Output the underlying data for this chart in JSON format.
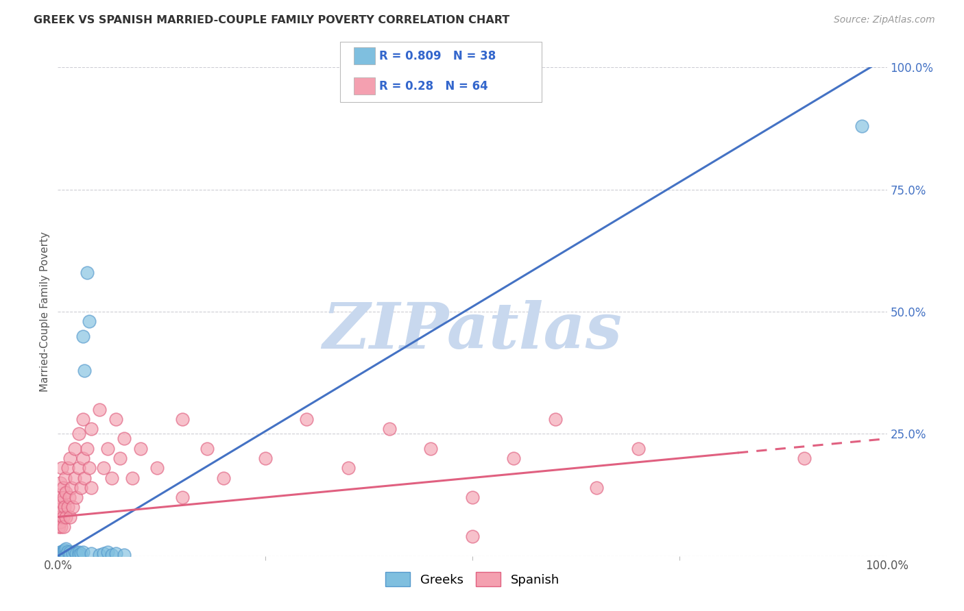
{
  "title": "GREEK VS SPANISH MARRIED-COUPLE FAMILY POVERTY CORRELATION CHART",
  "source": "Source: ZipAtlas.com",
  "ylabel": "Married-Couple Family Poverty",
  "xlim": [
    0,
    1
  ],
  "ylim": [
    0,
    1
  ],
  "yticks": [
    0.0,
    0.25,
    0.5,
    0.75,
    1.0
  ],
  "yticklabels": [
    "",
    "25.0%",
    "50.0%",
    "75.0%",
    "100.0%"
  ],
  "xtick_positions": [
    0.0,
    1.0
  ],
  "xticklabels": [
    "0.0%",
    "100.0%"
  ],
  "grid_yticks": [
    0.0,
    0.25,
    0.5,
    0.75,
    1.0
  ],
  "greek_color": "#7fbfdf",
  "greek_edge_color": "#5599cc",
  "spanish_color": "#f4a0b0",
  "spanish_edge_color": "#e06080",
  "greek_line_color": "#4472c4",
  "spanish_line_color": "#e06080",
  "legend_text_color": "#3366cc",
  "background_color": "#ffffff",
  "grid_color": "#c8c8d0",
  "watermark_color": "#c8d8ee",
  "watermark_text": "ZIPatlas",
  "greek_R": 0.809,
  "greek_N": 38,
  "spanish_R": 0.28,
  "spanish_N": 64,
  "greek_line_x0": 0.0,
  "greek_line_y0": 0.0,
  "greek_line_x1": 1.0,
  "greek_line_y1": 1.02,
  "spanish_line_x0": 0.0,
  "spanish_line_y0": 0.08,
  "spanish_line_x1": 1.0,
  "spanish_line_y1": 0.24,
  "greek_scatter": [
    [
      0.001,
      0.002
    ],
    [
      0.001,
      0.003
    ],
    [
      0.002,
      0.005
    ],
    [
      0.002,
      0.002
    ],
    [
      0.003,
      0.004
    ],
    [
      0.003,
      0.008
    ],
    [
      0.004,
      0.006
    ],
    [
      0.004,
      0.003
    ],
    [
      0.005,
      0.01
    ],
    [
      0.005,
      0.005
    ],
    [
      0.006,
      0.008
    ],
    [
      0.007,
      0.006
    ],
    [
      0.008,
      0.012
    ],
    [
      0.009,
      0.005
    ],
    [
      0.01,
      0.015
    ],
    [
      0.01,
      0.003
    ],
    [
      0.012,
      0.01
    ],
    [
      0.015,
      0.008
    ],
    [
      0.015,
      0.003
    ],
    [
      0.018,
      0.005
    ],
    [
      0.02,
      0.01
    ],
    [
      0.022,
      0.005
    ],
    [
      0.025,
      0.008
    ],
    [
      0.025,
      0.003
    ],
    [
      0.028,
      0.005
    ],
    [
      0.03,
      0.008
    ],
    [
      0.03,
      0.45
    ],
    [
      0.032,
      0.38
    ],
    [
      0.035,
      0.58
    ],
    [
      0.038,
      0.48
    ],
    [
      0.04,
      0.005
    ],
    [
      0.05,
      0.003
    ],
    [
      0.055,
      0.005
    ],
    [
      0.06,
      0.008
    ],
    [
      0.065,
      0.003
    ],
    [
      0.07,
      0.005
    ],
    [
      0.08,
      0.003
    ],
    [
      0.97,
      0.88
    ]
  ],
  "spanish_scatter": [
    [
      0.001,
      0.06
    ],
    [
      0.001,
      0.1
    ],
    [
      0.002,
      0.08
    ],
    [
      0.002,
      0.12
    ],
    [
      0.003,
      0.07
    ],
    [
      0.003,
      0.15
    ],
    [
      0.004,
      0.09
    ],
    [
      0.004,
      0.06
    ],
    [
      0.005,
      0.11
    ],
    [
      0.005,
      0.18
    ],
    [
      0.006,
      0.08
    ],
    [
      0.006,
      0.14
    ],
    [
      0.007,
      0.12
    ],
    [
      0.007,
      0.06
    ],
    [
      0.008,
      0.1
    ],
    [
      0.009,
      0.16
    ],
    [
      0.01,
      0.08
    ],
    [
      0.01,
      0.13
    ],
    [
      0.012,
      0.1
    ],
    [
      0.012,
      0.18
    ],
    [
      0.014,
      0.12
    ],
    [
      0.015,
      0.08
    ],
    [
      0.015,
      0.2
    ],
    [
      0.016,
      0.14
    ],
    [
      0.018,
      0.1
    ],
    [
      0.02,
      0.16
    ],
    [
      0.02,
      0.22
    ],
    [
      0.022,
      0.12
    ],
    [
      0.025,
      0.18
    ],
    [
      0.025,
      0.25
    ],
    [
      0.028,
      0.14
    ],
    [
      0.03,
      0.2
    ],
    [
      0.03,
      0.28
    ],
    [
      0.032,
      0.16
    ],
    [
      0.035,
      0.22
    ],
    [
      0.038,
      0.18
    ],
    [
      0.04,
      0.26
    ],
    [
      0.04,
      0.14
    ],
    [
      0.05,
      0.3
    ],
    [
      0.055,
      0.18
    ],
    [
      0.06,
      0.22
    ],
    [
      0.065,
      0.16
    ],
    [
      0.07,
      0.28
    ],
    [
      0.075,
      0.2
    ],
    [
      0.08,
      0.24
    ],
    [
      0.09,
      0.16
    ],
    [
      0.1,
      0.22
    ],
    [
      0.12,
      0.18
    ],
    [
      0.15,
      0.28
    ],
    [
      0.15,
      0.12
    ],
    [
      0.18,
      0.22
    ],
    [
      0.2,
      0.16
    ],
    [
      0.25,
      0.2
    ],
    [
      0.3,
      0.28
    ],
    [
      0.35,
      0.18
    ],
    [
      0.4,
      0.26
    ],
    [
      0.45,
      0.22
    ],
    [
      0.5,
      0.12
    ],
    [
      0.5,
      0.04
    ],
    [
      0.55,
      0.2
    ],
    [
      0.6,
      0.28
    ],
    [
      0.65,
      0.14
    ],
    [
      0.7,
      0.22
    ],
    [
      0.9,
      0.2
    ]
  ]
}
